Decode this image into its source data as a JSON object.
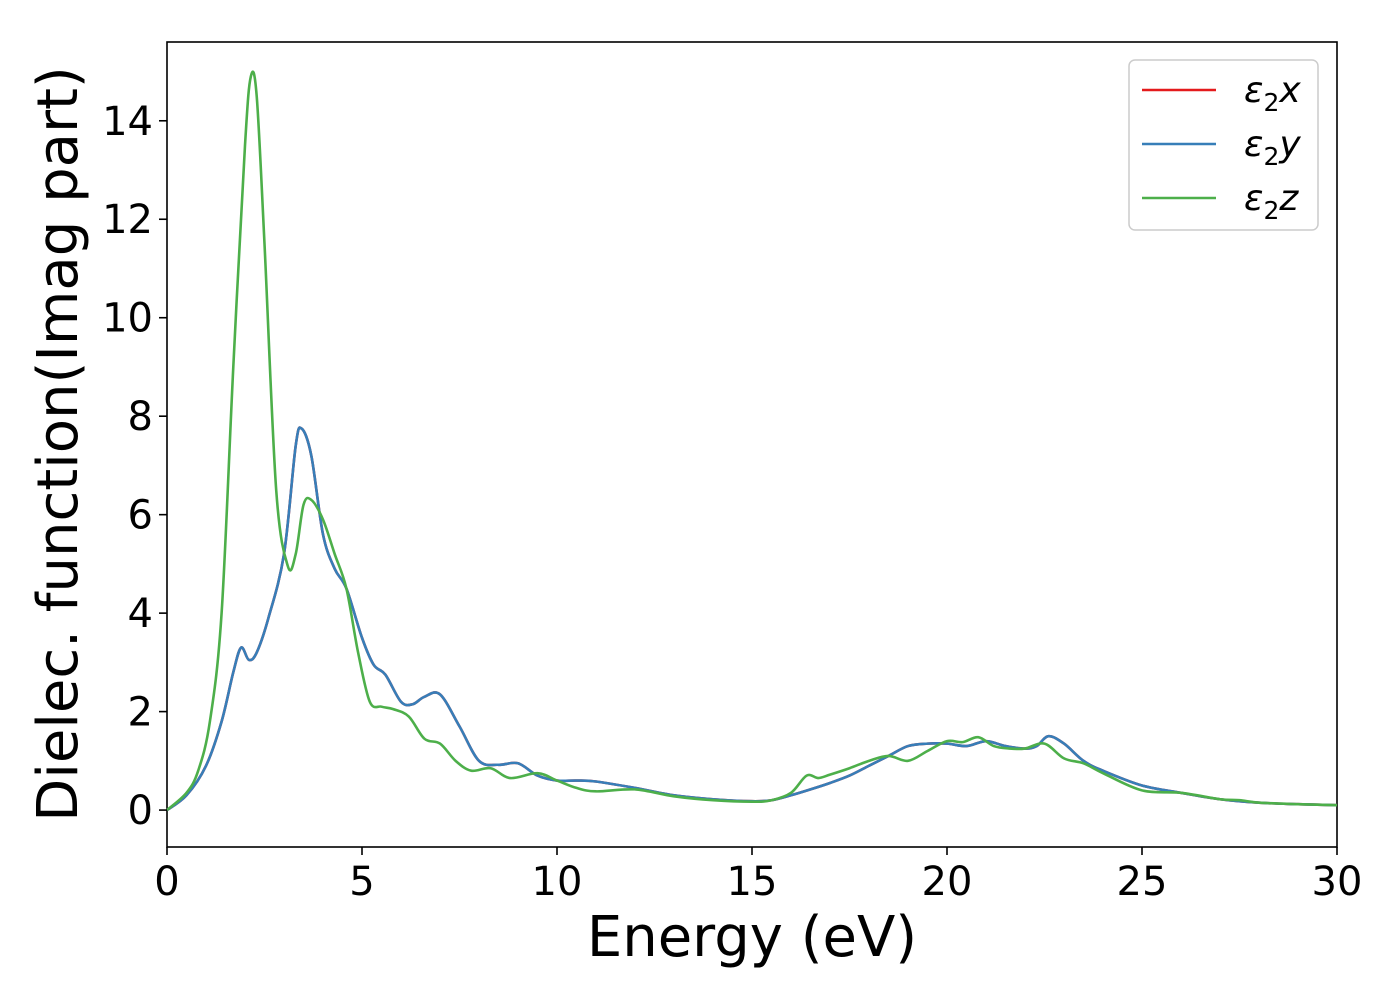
{
  "chart_data": {
    "type": "line",
    "xlabel": "Energy (eV)",
    "ylabel": "Dielec. function(Imag part)",
    "xlim": [
      0,
      30
    ],
    "ylim": [
      -0.75,
      15.6
    ],
    "xticks": [
      0,
      5,
      10,
      15,
      20,
      25,
      30
    ],
    "yticks": [
      0,
      2,
      4,
      6,
      8,
      10,
      12,
      14
    ],
    "grid": false,
    "legend_position": "top-right",
    "series": [
      {
        "name": "ε₂x",
        "legend": {
          "base": "ε",
          "sub": "2",
          "axis": "x"
        },
        "color": "#e41a1c",
        "x": [
          0,
          0.5,
          1.0,
          1.4,
          1.7,
          1.9,
          2.1,
          2.3,
          2.6,
          3.0,
          3.3,
          3.45,
          3.7,
          4.0,
          4.3,
          4.6,
          5.0,
          5.3,
          5.6,
          6.0,
          6.3,
          6.6,
          7.0,
          7.5,
          8.0,
          8.5,
          9.0,
          9.5,
          10.0,
          10.5,
          11.0,
          12.0,
          13.0,
          14.0,
          15.0,
          15.5,
          16.0,
          16.5,
          17.0,
          17.5,
          18.0,
          18.5,
          19.0,
          19.5,
          20.0,
          20.5,
          21.0,
          21.5,
          22.0,
          22.3,
          22.6,
          23.0,
          23.5,
          24.0,
          25.0,
          26.0,
          27.0,
          28.0,
          29.0,
          30.0
        ],
        "y": [
          0,
          0.3,
          0.9,
          1.8,
          2.8,
          3.3,
          3.05,
          3.2,
          3.9,
          5.2,
          7.4,
          7.75,
          7.2,
          5.6,
          4.9,
          4.5,
          3.5,
          2.95,
          2.75,
          2.2,
          2.15,
          2.3,
          2.35,
          1.7,
          1.0,
          0.92,
          0.95,
          0.7,
          0.6,
          0.6,
          0.58,
          0.45,
          0.3,
          0.22,
          0.18,
          0.2,
          0.3,
          0.42,
          0.55,
          0.7,
          0.9,
          1.1,
          1.3,
          1.35,
          1.35,
          1.3,
          1.4,
          1.3,
          1.25,
          1.3,
          1.5,
          1.35,
          1.0,
          0.8,
          0.5,
          0.35,
          0.22,
          0.15,
          0.12,
          0.1
        ]
      },
      {
        "name": "ε₂y",
        "legend": {
          "base": "ε",
          "sub": "2",
          "axis": "y"
        },
        "color": "#377eb8",
        "x": [
          0,
          0.5,
          1.0,
          1.4,
          1.7,
          1.9,
          2.1,
          2.3,
          2.6,
          3.0,
          3.3,
          3.45,
          3.7,
          4.0,
          4.3,
          4.6,
          5.0,
          5.3,
          5.6,
          6.0,
          6.3,
          6.6,
          7.0,
          7.5,
          8.0,
          8.5,
          9.0,
          9.5,
          10.0,
          10.5,
          11.0,
          12.0,
          13.0,
          14.0,
          15.0,
          15.5,
          16.0,
          16.5,
          17.0,
          17.5,
          18.0,
          18.5,
          19.0,
          19.5,
          20.0,
          20.5,
          21.0,
          21.5,
          22.0,
          22.3,
          22.6,
          23.0,
          23.5,
          24.0,
          25.0,
          26.0,
          27.0,
          28.0,
          29.0,
          30.0
        ],
        "y": [
          0,
          0.3,
          0.9,
          1.8,
          2.8,
          3.3,
          3.05,
          3.2,
          3.9,
          5.2,
          7.4,
          7.75,
          7.2,
          5.6,
          4.9,
          4.5,
          3.5,
          2.95,
          2.75,
          2.2,
          2.15,
          2.3,
          2.35,
          1.7,
          1.0,
          0.92,
          0.95,
          0.7,
          0.6,
          0.6,
          0.58,
          0.45,
          0.3,
          0.22,
          0.18,
          0.2,
          0.3,
          0.42,
          0.55,
          0.7,
          0.9,
          1.1,
          1.3,
          1.35,
          1.35,
          1.3,
          1.4,
          1.3,
          1.25,
          1.3,
          1.5,
          1.35,
          1.0,
          0.8,
          0.5,
          0.35,
          0.22,
          0.15,
          0.12,
          0.1
        ]
      },
      {
        "name": "ε₂z",
        "legend": {
          "base": "ε",
          "sub": "2",
          "axis": "z"
        },
        "color": "#4daf4a",
        "x": [
          0,
          0.5,
          0.8,
          1.1,
          1.4,
          1.7,
          2.0,
          2.15,
          2.3,
          2.5,
          2.8,
          3.1,
          3.3,
          3.5,
          3.7,
          4.0,
          4.3,
          4.6,
          4.9,
          5.2,
          5.5,
          5.8,
          6.2,
          6.6,
          7.0,
          7.4,
          7.8,
          8.3,
          8.8,
          9.5,
          10.0,
          10.5,
          11.0,
          12.0,
          13.0,
          14.0,
          15.0,
          15.5,
          16.0,
          16.4,
          16.7,
          17.0,
          17.5,
          18.0,
          18.5,
          19.0,
          19.5,
          20.0,
          20.4,
          20.8,
          21.2,
          21.6,
          22.0,
          22.5,
          23.0,
          23.5,
          24.0,
          25.0,
          26.0,
          27.0,
          27.5,
          28.0,
          29.0,
          30.0
        ],
        "y": [
          0,
          0.35,
          0.8,
          1.8,
          4.0,
          9.0,
          13.5,
          14.9,
          14.5,
          11.5,
          6.5,
          4.95,
          5.2,
          6.2,
          6.3,
          5.9,
          5.2,
          4.5,
          3.2,
          2.2,
          2.1,
          2.05,
          1.9,
          1.45,
          1.35,
          1.0,
          0.8,
          0.85,
          0.65,
          0.75,
          0.6,
          0.45,
          0.38,
          0.42,
          0.28,
          0.2,
          0.17,
          0.2,
          0.35,
          0.7,
          0.65,
          0.72,
          0.85,
          1.0,
          1.1,
          1.0,
          1.2,
          1.4,
          1.38,
          1.48,
          1.3,
          1.25,
          1.25,
          1.35,
          1.05,
          0.95,
          0.75,
          0.4,
          0.35,
          0.22,
          0.2,
          0.15,
          0.12,
          0.1
        ]
      }
    ]
  }
}
